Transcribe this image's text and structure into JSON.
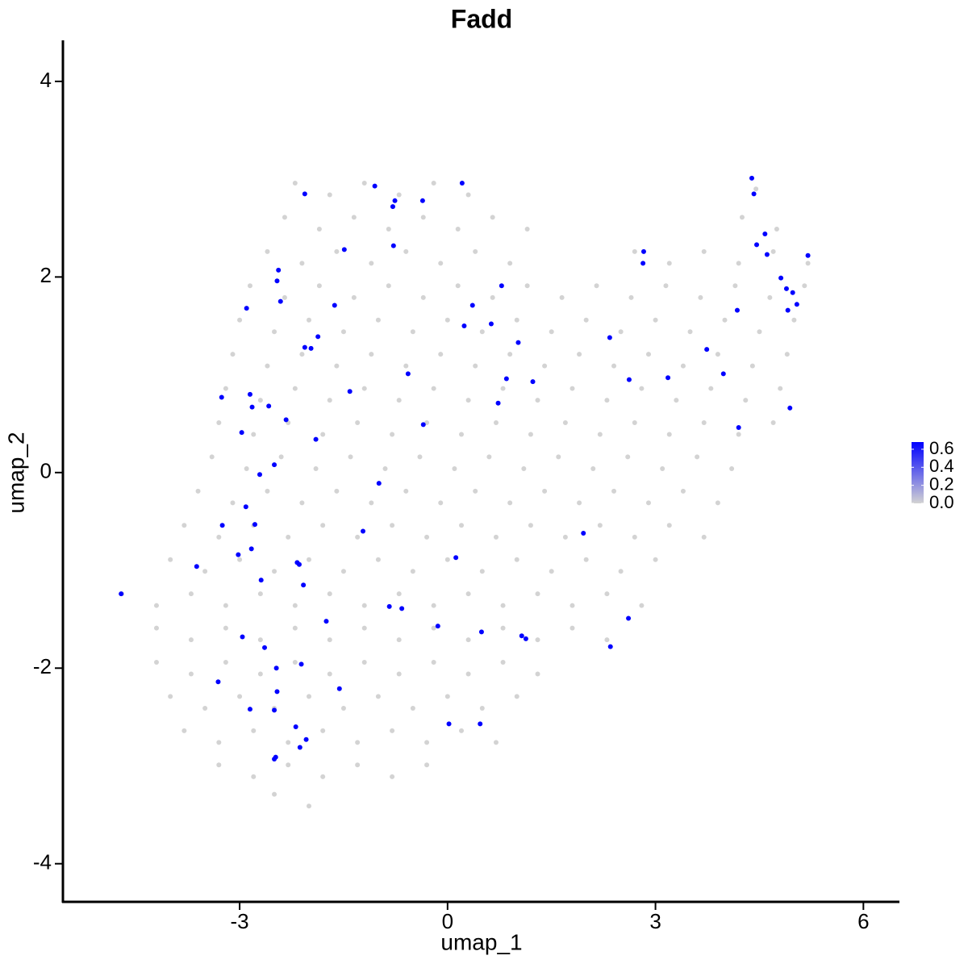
{
  "chart_data": {
    "type": "scatter",
    "title": "Fadd",
    "x_label": "umap_1",
    "y_label": "umap_2",
    "xlim": [
      -5.55,
      6.52
    ],
    "ylim": [
      -4.39,
      4.42
    ],
    "xticks": [
      -3,
      0,
      3,
      6
    ],
    "yticks": [
      -4,
      -2,
      0,
      2,
      4
    ],
    "color_low": "#d3d3d3",
    "color_high": "#0000ff",
    "colorlim": [
      0,
      0.68
    ],
    "colorticks": [
      {
        "value": 0,
        "label": "0.0"
      },
      {
        "value": 0.2,
        "label": "0.2"
      },
      {
        "value": 0.4,
        "label": "0.4"
      },
      {
        "value": 0.6,
        "label": "0.6"
      }
    ],
    "x": [
      -2.2,
      -1.7,
      -1.2,
      -0.7,
      -0.2,
      0.3,
      4.45,
      -2.35,
      -1.85,
      -1.35,
      -0.85,
      -0.35,
      0.15,
      0.65,
      1.15,
      4.25,
      4.75,
      -2.6,
      -2.1,
      -1.6,
      -1.1,
      -0.6,
      -0.1,
      0.4,
      0.9,
      2.7,
      3.2,
      3.7,
      4.2,
      4.7,
      5.2,
      -2.85,
      -2.35,
      -1.85,
      -1.35,
      -0.85,
      -0.35,
      0.15,
      0.65,
      1.15,
      1.65,
      2.15,
      2.65,
      3.15,
      3.65,
      4.15,
      4.65,
      5.15,
      -3,
      -2.5,
      -2,
      -1.5,
      -1,
      -0.5,
      0,
      0.5,
      1,
      1.5,
      2,
      2.5,
      3,
      3.5,
      4,
      4.5,
      5,
      -3.1,
      -2.6,
      -2.1,
      -1.6,
      -1.1,
      -0.6,
      -0.1,
      0.4,
      0.9,
      1.4,
      1.9,
      2.4,
      2.9,
      3.4,
      3.9,
      4.4,
      4.9,
      -3.2,
      -2.7,
      -2.2,
      -1.7,
      -1.2,
      -0.7,
      -0.2,
      0.3,
      0.8,
      1.3,
      1.8,
      2.3,
      2.8,
      3.3,
      3.8,
      4.3,
      4.8,
      -3.3,
      -2.8,
      -2.3,
      -1.8,
      -1.3,
      -0.8,
      -0.3,
      0.2,
      0.7,
      1.2,
      1.7,
      2.2,
      2.7,
      3.2,
      3.7,
      4.2,
      4.7,
      -3.4,
      -2.9,
      -2.4,
      -1.9,
      -1.4,
      -0.9,
      -0.4,
      0.1,
      0.6,
      1.1,
      1.6,
      2.1,
      2.6,
      3.1,
      3.6,
      4.1,
      -3.6,
      -3.1,
      -2.6,
      -2.1,
      -1.6,
      -1.1,
      -0.6,
      -0.1,
      0.4,
      0.9,
      1.4,
      1.9,
      2.4,
      2.9,
      3.4,
      3.9,
      -3.8,
      -3.3,
      -2.8,
      -2.3,
      -1.8,
      -1.3,
      -0.8,
      -0.3,
      0.2,
      0.7,
      1.2,
      1.7,
      2.2,
      2.7,
      3.2,
      3.7,
      -4,
      -3.5,
      -3,
      -2.5,
      -2,
      -1.5,
      -1,
      -0.5,
      0,
      0.5,
      1,
      1.5,
      2,
      2.5,
      3,
      -4.7,
      -4.2,
      -3.7,
      -3.2,
      -2.7,
      -2.2,
      -1.7,
      -1.2,
      -0.7,
      -0.2,
      0.3,
      0.8,
      1.3,
      1.8,
      2.3,
      2.8,
      -4.2,
      -3.7,
      -3.2,
      -2.7,
      -2.2,
      -1.7,
      -1.2,
      -0.7,
      -0.2,
      0.3,
      0.8,
      1.3,
      1.8,
      2.3,
      -4.2,
      -3.7,
      -3.2,
      -2.7,
      -2.2,
      -1.7,
      -1.2,
      -0.7,
      -0.2,
      0.3,
      0.8,
      1.3,
      -4,
      -3.5,
      -3,
      -2.5,
      -2,
      -1.5,
      -1,
      -0.5,
      0,
      0.5,
      1,
      -3.8,
      -3.3,
      -2.8,
      -2.3,
      -1.8,
      -1.3,
      -0.8,
      -0.3,
      0.2,
      0.7,
      -3.3,
      -2.8,
      -2.3,
      -1.8,
      -1.3,
      -0.8,
      -0.3,
      -2.5,
      -2.0,
      -4.71,
      4.39,
      4.42,
      -2.06,
      -1.05,
      -0.76,
      -0.79,
      -0.36,
      0.21,
      -1.49,
      -0.78,
      -2.44,
      -2.46,
      -2.41,
      -2.9,
      -1.63,
      0.78,
      0.36,
      0.24,
      0.63,
      1.02,
      -1.87,
      -2.06,
      -1.97,
      -0.57,
      -1.41,
      0.85,
      1.23,
      0.73,
      -3.26,
      -2.85,
      -2.82,
      -2.58,
      -2.33,
      -0.35,
      -2.97,
      -1.9,
      -2.5,
      -2.71,
      -0.99,
      -2.91,
      -3.25,
      -2.78,
      -1.22,
      -2.83,
      -3.02,
      -3.62,
      -2.69,
      -2.17,
      -2.14,
      -2.08,
      0.12,
      1.96,
      -0.84,
      -0.66,
      -1.75,
      -0.14,
      0.49,
      1.07,
      1.13,
      2.61,
      2.35,
      -2.96,
      -2.64,
      -2.47,
      -2.11,
      -3.31,
      -2.46,
      -1.56,
      -2.85,
      -2.5,
      0.02,
      0.47,
      -2.19,
      -2.04,
      -2.13,
      -2.48,
      -2.5,
      2.83,
      2.82,
      4.58,
      4.46,
      4.61,
      5.2,
      4.81,
      4.89,
      4.98,
      5.04,
      4.91,
      4.18,
      2.34,
      3.74,
      3.98,
      2.62,
      3.18,
      4.2,
      4.94
    ],
    "y": [
      2.96,
      2.84,
      2.96,
      2.84,
      2.96,
      2.84,
      2.9,
      2.61,
      2.49,
      2.61,
      2.49,
      2.61,
      2.49,
      2.61,
      2.49,
      2.61,
      2.49,
      2.26,
      2.14,
      2.26,
      2.14,
      2.26,
      2.14,
      2.26,
      2.14,
      2.26,
      2.14,
      2.26,
      2.14,
      2.26,
      2.14,
      1.91,
      1.79,
      1.91,
      1.79,
      1.91,
      1.79,
      1.91,
      1.79,
      1.91,
      1.79,
      1.91,
      1.79,
      1.91,
      1.79,
      1.91,
      1.79,
      1.91,
      1.56,
      1.44,
      1.56,
      1.44,
      1.56,
      1.44,
      1.56,
      1.44,
      1.56,
      1.44,
      1.56,
      1.44,
      1.56,
      1.44,
      1.56,
      1.44,
      1.56,
      1.21,
      1.09,
      1.21,
      1.09,
      1.21,
      1.09,
      1.21,
      1.09,
      1.21,
      1.09,
      1.21,
      1.09,
      1.21,
      1.09,
      1.21,
      1.09,
      1.21,
      0.86,
      0.74,
      0.86,
      0.74,
      0.86,
      0.74,
      0.86,
      0.74,
      0.86,
      0.74,
      0.86,
      0.74,
      0.86,
      0.74,
      0.86,
      0.74,
      0.86,
      0.51,
      0.39,
      0.51,
      0.39,
      0.51,
      0.39,
      0.51,
      0.39,
      0.51,
      0.39,
      0.51,
      0.39,
      0.51,
      0.39,
      0.51,
      0.39,
      0.51,
      0.16,
      0.04,
      0.16,
      0.04,
      0.16,
      0.04,
      0.16,
      0.04,
      0.16,
      0.04,
      0.16,
      0.04,
      0.16,
      0.04,
      0.16,
      0.04,
      -0.19,
      -0.31,
      -0.19,
      -0.31,
      -0.19,
      -0.31,
      -0.19,
      -0.31,
      -0.19,
      -0.31,
      -0.19,
      -0.31,
      -0.19,
      -0.31,
      -0.19,
      -0.31,
      -0.54,
      -0.66,
      -0.54,
      -0.66,
      -0.54,
      -0.66,
      -0.54,
      -0.66,
      -0.54,
      -0.66,
      -0.54,
      -0.66,
      -0.54,
      -0.66,
      -0.54,
      -0.66,
      -0.89,
      -1.01,
      -0.89,
      -1.01,
      -0.89,
      -1.01,
      -0.89,
      -1.01,
      -0.89,
      -1.01,
      -0.89,
      -1.01,
      -0.89,
      -1.01,
      -0.89,
      -1.24,
      -1.36,
      -1.24,
      -1.36,
      -1.24,
      -1.36,
      -1.24,
      -1.36,
      -1.24,
      -1.36,
      -1.24,
      -1.36,
      -1.24,
      -1.36,
      -1.24,
      -1.36,
      -1.59,
      -1.71,
      -1.59,
      -1.71,
      -1.59,
      -1.71,
      -1.59,
      -1.71,
      -1.59,
      -1.71,
      -1.59,
      -1.71,
      -1.59,
      -1.71,
      -1.94,
      -2.06,
      -1.94,
      -2.06,
      -1.94,
      -2.06,
      -1.94,
      -2.06,
      -1.94,
      -2.06,
      -1.94,
      -2.06,
      -2.29,
      -2.41,
      -2.29,
      -2.41,
      -2.29,
      -2.41,
      -2.29,
      -2.41,
      -2.29,
      -2.41,
      -2.29,
      -2.64,
      -2.76,
      -2.64,
      -2.76,
      -2.64,
      -2.76,
      -2.64,
      -2.76,
      -2.64,
      -2.76,
      -2.99,
      -3.11,
      -2.99,
      -3.11,
      -2.99,
      -3.11,
      -2.99,
      -3.29,
      -3.41,
      -1.24,
      3.01,
      2.85,
      2.85,
      2.93,
      2.78,
      2.72,
      2.78,
      2.96,
      2.28,
      2.32,
      2.07,
      1.96,
      1.75,
      1.68,
      1.71,
      1.91,
      1.71,
      1.5,
      1.52,
      1.33,
      1.39,
      1.28,
      1.27,
      1.01,
      0.83,
      0.96,
      0.93,
      0.71,
      0.77,
      0.8,
      0.67,
      0.68,
      0.54,
      0.49,
      0.41,
      0.34,
      0.08,
      -0.02,
      -0.11,
      -0.35,
      -0.54,
      -0.53,
      -0.6,
      -0.78,
      -0.84,
      -0.96,
      -1.1,
      -0.92,
      -0.94,
      -1.15,
      -0.87,
      -0.62,
      -1.37,
      -1.39,
      -1.52,
      -1.57,
      -1.63,
      -1.67,
      -1.7,
      -1.49,
      -1.78,
      -1.68,
      -1.79,
      -2.0,
      -1.96,
      -2.14,
      -2.24,
      -2.21,
      -2.42,
      -2.43,
      -2.57,
      -2.57,
      -2.6,
      -2.73,
      -2.81,
      -2.91,
      -2.93,
      2.26,
      2.14,
      2.44,
      2.33,
      2.23,
      2.22,
      1.99,
      1.88,
      1.84,
      1.72,
      1.66,
      1.66,
      1.38,
      1.26,
      1.01,
      0.95,
      0.97,
      0.46,
      0.66
    ],
    "values": [
      0,
      0,
      0,
      0,
      0,
      0,
      0,
      0,
      0,
      0,
      0,
      0,
      0,
      0,
      0,
      0,
      0,
      0,
      0,
      0,
      0,
      0,
      0,
      0,
      0,
      0,
      0,
      0,
      0,
      0,
      0,
      0,
      0,
      0,
      0,
      0,
      0,
      0,
      0,
      0,
      0,
      0,
      0,
      0,
      0,
      0,
      0,
      0,
      0,
      0,
      0,
      0,
      0,
      0,
      0,
      0,
      0,
      0,
      0,
      0,
      0,
      0,
      0,
      0,
      0,
      0,
      0,
      0,
      0,
      0,
      0,
      0,
      0,
      0,
      0,
      0,
      0,
      0,
      0,
      0,
      0,
      0,
      0,
      0,
      0,
      0,
      0,
      0,
      0,
      0,
      0,
      0,
      0,
      0,
      0,
      0,
      0,
      0,
      0,
      0,
      0,
      0,
      0,
      0,
      0,
      0,
      0,
      0,
      0,
      0,
      0,
      0,
      0,
      0,
      0,
      0,
      0,
      0,
      0,
      0,
      0,
      0,
      0,
      0,
      0,
      0,
      0,
      0,
      0,
      0,
      0,
      0,
      0,
      0,
      0,
      0,
      0,
      0,
      0,
      0,
      0,
      0,
      0,
      0,
      0,
      0,
      0,
      0,
      0,
      0,
      0,
      0,
      0,
      0,
      0,
      0,
      0,
      0,
      0,
      0,
      0,
      0,
      0,
      0,
      0,
      0,
      0,
      0,
      0,
      0,
      0,
      0,
      0,
      0,
      0,
      0,
      0,
      0,
      0,
      0,
      0,
      0,
      0,
      0,
      0,
      0,
      0,
      0,
      0,
      0,
      0,
      0,
      0,
      0,
      0,
      0,
      0,
      0,
      0,
      0,
      0,
      0,
      0,
      0,
      0,
      0,
      0,
      0,
      0,
      0,
      0,
      0,
      0,
      0,
      0,
      0,
      0,
      0,
      0,
      0,
      0,
      0,
      0,
      0,
      0,
      0,
      0,
      0,
      0,
      0,
      0,
      0,
      0,
      0,
      0,
      0,
      0,
      0,
      0,
      0,
      0,
      0,
      0,
      0,
      0,
      0,
      0,
      0,
      0,
      0,
      0,
      0.68,
      0.68,
      0.68,
      0.68,
      0.68,
      0.68,
      0.68,
      0.68,
      0.68,
      0.68,
      0.68,
      0.68,
      0.68,
      0.68,
      0.68,
      0.68,
      0.68,
      0.68,
      0.68,
      0.68,
      0.68,
      0.68,
      0.68,
      0.68,
      0.68,
      0.68,
      0.68,
      0.68,
      0.68,
      0.68,
      0.68,
      0.68,
      0.68,
      0.68,
      0.68,
      0.68,
      0.68,
      0.68,
      0.68,
      0.68,
      0.68,
      0.68,
      0.68,
      0.68,
      0.68,
      0.68,
      0.68,
      0.68,
      0.68,
      0.68,
      0.68,
      0.68,
      0.68,
      0.68,
      0.68,
      0.68,
      0.68,
      0.68,
      0.68,
      0.68,
      0.68,
      0.68,
      0.68,
      0.68,
      0.68,
      0.68,
      0.68,
      0.68,
      0.68,
      0.68,
      0.68,
      0.68,
      0.68,
      0.68,
      0.68,
      0.68,
      0.68,
      0.68,
      0.68,
      0.68,
      0.68,
      0.68,
      0.68,
      0.68,
      0.68,
      0.68,
      0.68,
      0.68,
      0.68,
      0.68,
      0.68,
      0.68,
      0.68,
      0.68,
      0.68,
      0.68,
      0.68
    ]
  }
}
